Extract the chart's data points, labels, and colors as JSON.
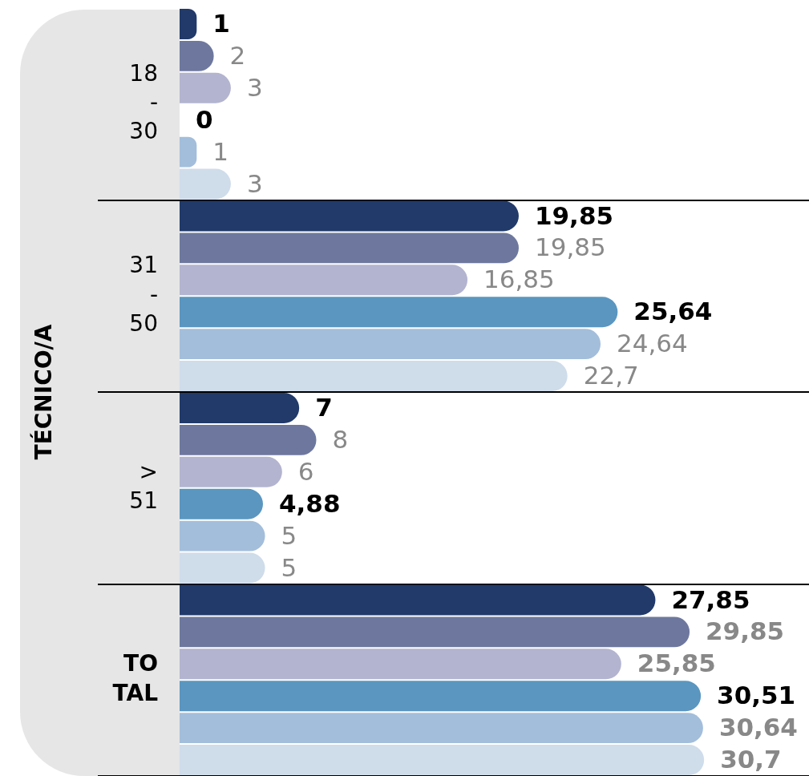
{
  "chart_data": {
    "type": "bar",
    "orientation": "horizontal",
    "ylabel": "TÉCNICO/A",
    "grid": "y",
    "categories": [
      "18\n-\n30",
      "31\n-\n50",
      ">\n51",
      "TO\nTAL"
    ],
    "series": [
      {
        "color": "#213a69",
        "values": [
          1,
          19.85,
          7,
          27.85
        ],
        "value_labels": [
          "1",
          "19,85",
          "7",
          "27,85"
        ]
      },
      {
        "color": "#6e789e",
        "values": [
          2,
          19.85,
          8,
          29.85
        ],
        "value_labels": [
          "2",
          "19,85",
          "8",
          "29,85"
        ]
      },
      {
        "color": "#b3b4cf",
        "values": [
          3,
          16.85,
          6,
          25.85
        ],
        "value_labels": [
          "3",
          "16,85",
          "6",
          "25,85"
        ]
      },
      {
        "color": "#5a96c0",
        "values": [
          0,
          25.64,
          4.88,
          30.51
        ],
        "value_labels": [
          "0",
          "25,64",
          "4,88",
          "30,51"
        ]
      },
      {
        "color": "#a3bedb",
        "values": [
          1,
          24.64,
          5,
          30.64
        ],
        "value_labels": [
          "1",
          "24,64",
          "5",
          "30,64"
        ]
      },
      {
        "color": "#cfdcea",
        "values": [
          3,
          22.7,
          5,
          30.7
        ],
        "value_labels": [
          "3",
          "22,7",
          "5",
          "30,7"
        ]
      }
    ]
  }
}
